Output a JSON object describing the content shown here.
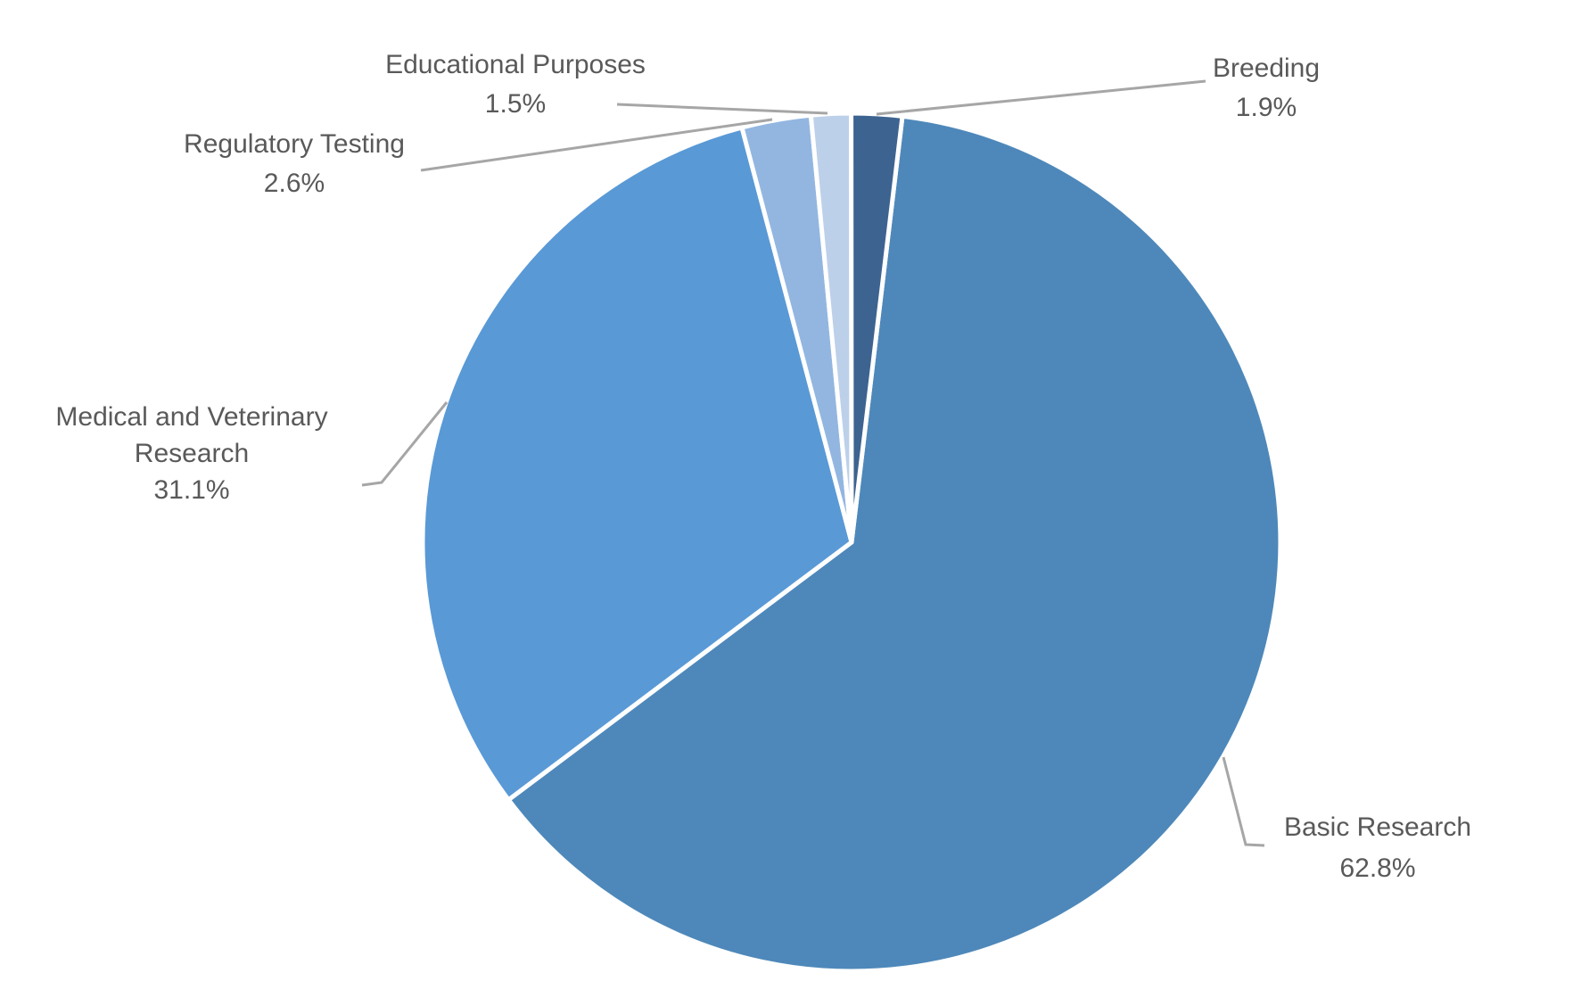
{
  "chart_data": {
    "type": "pie",
    "title": "",
    "legend": "none",
    "values_unit": "percent",
    "slices": [
      {
        "label": "Basic Research",
        "pct": 62.8,
        "pct_label": "62.8%",
        "color": "#4e88ba",
        "label_lines": [
          "Basic Research"
        ]
      },
      {
        "label": "Medical and Veterinary Research",
        "pct": 31.1,
        "pct_label": "31.1%",
        "color": "#5999d6",
        "label_lines": [
          "Medical and Veterinary",
          "Research"
        ]
      },
      {
        "label": "Regulatory Testing",
        "pct": 2.6,
        "pct_label": "2.6%",
        "color": "#92b6e0",
        "label_lines": [
          "Regulatory Testing"
        ]
      },
      {
        "label": "Educational Purposes",
        "pct": 1.5,
        "pct_label": "1.5%",
        "color": "#bdd0ea",
        "label_lines": [
          "Educational Purposes"
        ]
      },
      {
        "label": "Breeding",
        "pct": 1.9,
        "pct_label": "1.9%",
        "color": "#3d6390",
        "label_lines": [
          "Breeding"
        ]
      }
    ],
    "layout": {
      "start_angle_deg": 6.8,
      "direction": "clockwise",
      "labels_position": "outside_with_leader_lines",
      "slice_separator_color": "#ffffff",
      "leader_line_color": "#a6a6a6",
      "label_text_color": "#595959",
      "background": "#ffffff"
    }
  }
}
